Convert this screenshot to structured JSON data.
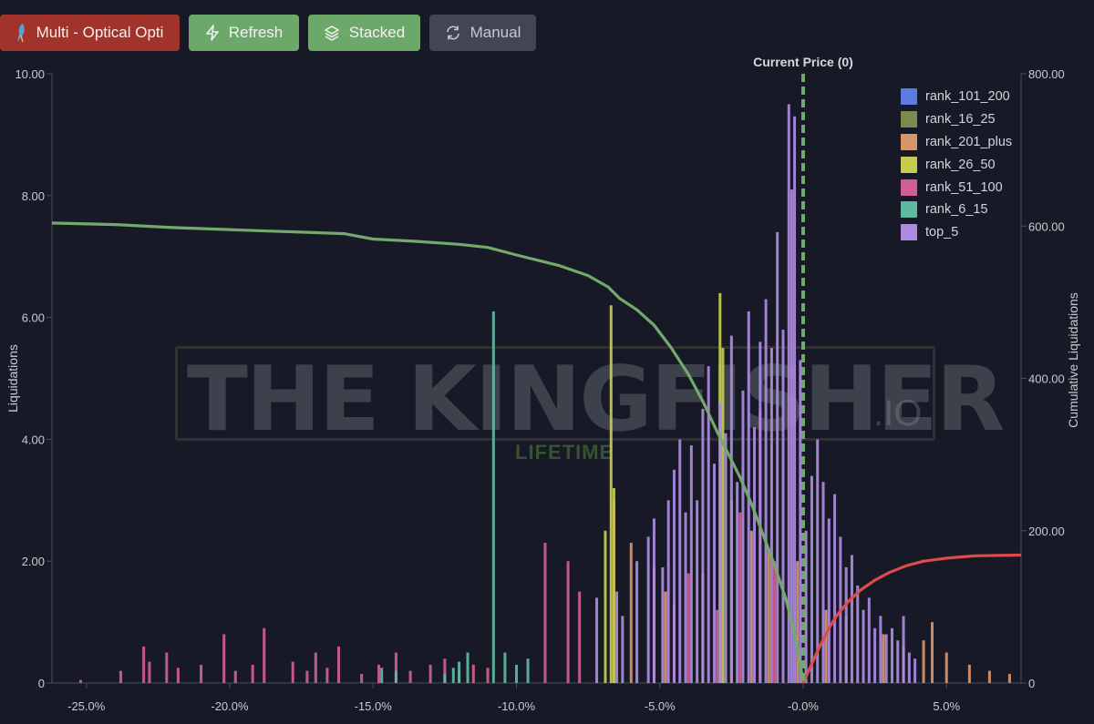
{
  "toolbar": {
    "multi_label": "Multi - Optical Opti",
    "refresh_label": "Refresh",
    "stacked_label": "Stacked",
    "manual_label": "Manual"
  },
  "watermark": {
    "text": "THE KINGFISHER",
    "suffix": ".IO",
    "subtitle": "LIFETIME"
  },
  "chart_data": {
    "type": "bar",
    "stacked": true,
    "title": "",
    "xlabel": "",
    "ylabel": "Liquidations",
    "ylabel_right": "Cumulative Liquidations",
    "xlim": [
      -0.262,
      0.076
    ],
    "ylim": [
      0,
      10
    ],
    "ylim_right": [
      0,
      800
    ],
    "x_ticks": [
      -0.25,
      -0.2,
      -0.15,
      -0.1,
      -0.05,
      -0.0,
      0.05
    ],
    "x_tick_labels": [
      "-25.0%",
      "-20.0%",
      "-15.0%",
      "-10.0%",
      "-5.0%",
      "-0.0%",
      "5.0%"
    ],
    "y_ticks": [
      0,
      2,
      4,
      6,
      8,
      10
    ],
    "y_tick_labels": [
      "0",
      "2.00",
      "4.00",
      "6.00",
      "8.00",
      "10.00"
    ],
    "y_right_ticks": [
      0,
      200,
      400,
      600,
      800
    ],
    "y_right_tick_labels": [
      "0",
      "200.00",
      "400.00",
      "600.00",
      "800.00"
    ],
    "current_price": {
      "x": 0.0,
      "label": "Current Price (0)"
    },
    "grid": false,
    "legend_position": "top-right",
    "series": [
      {
        "name": "rank_101_200",
        "color": "#5b7be0",
        "bars": []
      },
      {
        "name": "rank_16_25",
        "color": "#7d8a4f",
        "bars": []
      },
      {
        "name": "rank_201_plus",
        "color": "#d9956a",
        "bars": [
          [
            -0.06,
            2.3
          ],
          [
            -0.052,
            1.9
          ],
          [
            -0.048,
            1.5
          ],
          [
            -0.035,
            1.8
          ],
          [
            -0.025,
            3.0
          ],
          [
            -0.018,
            2.5
          ],
          [
            -0.012,
            2.2
          ],
          [
            -0.002,
            2.0
          ],
          [
            0.008,
            1.2
          ],
          [
            0.015,
            1.1
          ],
          [
            0.028,
            0.8
          ],
          [
            0.035,
            0.6
          ],
          [
            0.042,
            0.7
          ],
          [
            0.045,
            1.0
          ],
          [
            0.05,
            0.5
          ],
          [
            0.058,
            0.3
          ],
          [
            0.065,
            0.2
          ],
          [
            0.072,
            0.15
          ]
        ]
      },
      {
        "name": "rank_26_50",
        "color": "#c6cc4e",
        "bars": [
          [
            -0.069,
            2.5
          ],
          [
            -0.067,
            6.2
          ],
          [
            -0.066,
            3.2
          ],
          [
            -0.029,
            6.4
          ],
          [
            -0.028,
            5.5
          ]
        ]
      },
      {
        "name": "rank_51_100",
        "color": "#d05f94",
        "bars": [
          [
            -0.252,
            0.05
          ],
          [
            -0.238,
            0.2
          ],
          [
            -0.23,
            0.6
          ],
          [
            -0.228,
            0.35
          ],
          [
            -0.222,
            0.5
          ],
          [
            -0.218,
            0.25
          ],
          [
            -0.21,
            0.3
          ],
          [
            -0.202,
            0.8
          ],
          [
            -0.198,
            0.2
          ],
          [
            -0.192,
            0.3
          ],
          [
            -0.188,
            0.9
          ],
          [
            -0.178,
            0.35
          ],
          [
            -0.173,
            0.2
          ],
          [
            -0.17,
            0.5
          ],
          [
            -0.166,
            0.25
          ],
          [
            -0.162,
            0.6
          ],
          [
            -0.154,
            0.15
          ],
          [
            -0.148,
            0.3
          ],
          [
            -0.142,
            0.5
          ],
          [
            -0.137,
            0.2
          ],
          [
            -0.13,
            0.3
          ],
          [
            -0.125,
            0.4
          ],
          [
            -0.12,
            0.2
          ],
          [
            -0.115,
            0.3
          ],
          [
            -0.11,
            0.25
          ],
          [
            -0.09,
            2.3
          ],
          [
            -0.082,
            2.0
          ],
          [
            -0.078,
            1.5
          ],
          [
            -0.066,
            3.0
          ],
          [
            -0.045,
            1.3
          ],
          [
            -0.04,
            1.8
          ],
          [
            -0.03,
            1.2
          ],
          [
            -0.022,
            2.8
          ],
          [
            -0.015,
            4.5
          ],
          [
            -0.01,
            2.0
          ]
        ]
      },
      {
        "name": "rank_6_15",
        "color": "#5fb8a0",
        "bars": [
          [
            -0.108,
            6.1
          ],
          [
            -0.117,
            0.5
          ],
          [
            -0.12,
            0.35
          ],
          [
            -0.122,
            0.25
          ],
          [
            -0.125,
            0.15
          ],
          [
            -0.142,
            0.2
          ],
          [
            -0.147,
            0.25
          ],
          [
            -0.096,
            0.4
          ],
          [
            -0.1,
            0.3
          ],
          [
            -0.104,
            0.5
          ]
        ]
      },
      {
        "name": "top_5",
        "color": "#ad8be0",
        "bars": [
          [
            -0.072,
            1.4
          ],
          [
            -0.065,
            1.5
          ],
          [
            -0.063,
            1.1
          ],
          [
            -0.058,
            2.0
          ],
          [
            -0.054,
            2.4
          ],
          [
            -0.052,
            2.7
          ],
          [
            -0.049,
            1.9
          ],
          [
            -0.047,
            3.0
          ],
          [
            -0.045,
            3.5
          ],
          [
            -0.043,
            4.0
          ],
          [
            -0.041,
            2.8
          ],
          [
            -0.039,
            3.9
          ],
          [
            -0.037,
            3.0
          ],
          [
            -0.035,
            4.5
          ],
          [
            -0.033,
            5.2
          ],
          [
            -0.031,
            3.6
          ],
          [
            -0.029,
            4.6
          ],
          [
            -0.027,
            4.1
          ],
          [
            -0.025,
            5.7
          ],
          [
            -0.023,
            3.3
          ],
          [
            -0.021,
            4.8
          ],
          [
            -0.019,
            6.1
          ],
          [
            -0.017,
            4.2
          ],
          [
            -0.015,
            5.6
          ],
          [
            -0.013,
            6.3
          ],
          [
            -0.011,
            5.5
          ],
          [
            -0.009,
            7.4
          ],
          [
            -0.007,
            5.8
          ],
          [
            -0.005,
            9.5
          ],
          [
            -0.004,
            8.1
          ],
          [
            -0.003,
            9.3
          ],
          [
            -0.001,
            5.3
          ],
          [
            0.001,
            2.5
          ],
          [
            0.003,
            3.4
          ],
          [
            0.005,
            4.0
          ],
          [
            0.007,
            3.3
          ],
          [
            0.009,
            2.7
          ],
          [
            0.011,
            3.1
          ],
          [
            0.013,
            2.4
          ],
          [
            0.015,
            1.9
          ],
          [
            0.017,
            2.1
          ],
          [
            0.019,
            1.6
          ],
          [
            0.021,
            1.2
          ],
          [
            0.023,
            1.4
          ],
          [
            0.025,
            0.9
          ],
          [
            0.027,
            1.1
          ],
          [
            0.029,
            0.8
          ],
          [
            0.031,
            0.9
          ],
          [
            0.033,
            0.7
          ],
          [
            0.035,
            1.1
          ],
          [
            0.037,
            0.5
          ],
          [
            0.039,
            0.4
          ]
        ]
      }
    ],
    "cumulative_lines": [
      {
        "side": "left",
        "color": "#73a96c",
        "points": [
          [
            -0.262,
            604
          ],
          [
            -0.24,
            602
          ],
          [
            -0.22,
            598
          ],
          [
            -0.19,
            594
          ],
          [
            -0.175,
            592
          ],
          [
            -0.16,
            590
          ],
          [
            -0.15,
            583
          ],
          [
            -0.135,
            580
          ],
          [
            -0.12,
            576
          ],
          [
            -0.11,
            572
          ],
          [
            -0.1,
            562
          ],
          [
            -0.085,
            548
          ],
          [
            -0.075,
            535
          ],
          [
            -0.068,
            520
          ],
          [
            -0.064,
            505
          ],
          [
            -0.058,
            490
          ],
          [
            -0.052,
            470
          ],
          [
            -0.046,
            440
          ],
          [
            -0.04,
            405
          ],
          [
            -0.035,
            370
          ],
          [
            -0.03,
            330
          ],
          [
            -0.026,
            300
          ],
          [
            -0.022,
            270
          ],
          [
            -0.018,
            235
          ],
          [
            -0.014,
            195
          ],
          [
            -0.01,
            155
          ],
          [
            -0.006,
            110
          ],
          [
            -0.003,
            65
          ],
          [
            -0.001,
            25
          ],
          [
            0.0,
            0
          ]
        ]
      },
      {
        "side": "right",
        "color": "#dd4c49",
        "points": [
          [
            0.0,
            0
          ],
          [
            0.003,
            25
          ],
          [
            0.006,
            50
          ],
          [
            0.009,
            72
          ],
          [
            0.012,
            90
          ],
          [
            0.016,
            108
          ],
          [
            0.02,
            122
          ],
          [
            0.025,
            135
          ],
          [
            0.03,
            145
          ],
          [
            0.036,
            154
          ],
          [
            0.042,
            160
          ],
          [
            0.05,
            164
          ],
          [
            0.06,
            167
          ],
          [
            0.076,
            168
          ]
        ]
      }
    ]
  }
}
